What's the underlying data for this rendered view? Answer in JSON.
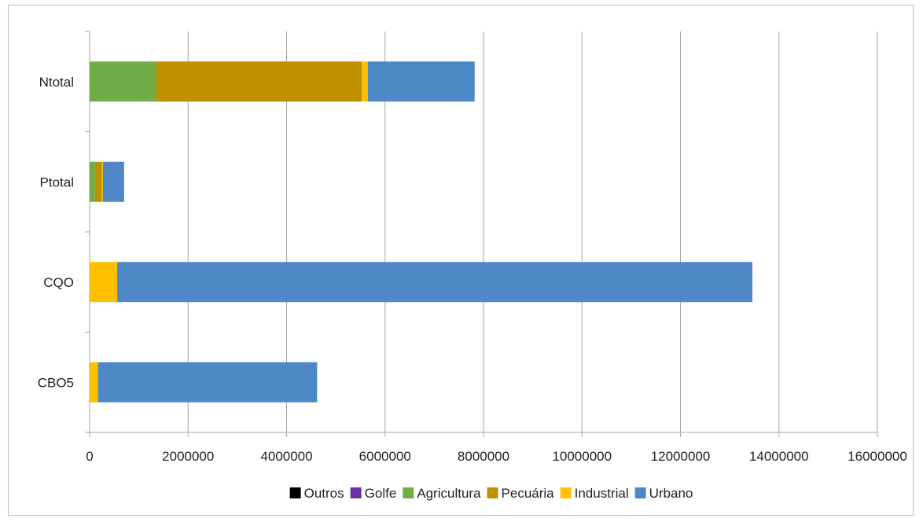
{
  "chart_data": {
    "type": "bar",
    "orientation": "horizontal",
    "stacked": true,
    "categories": [
      "CBO5",
      "CQO",
      "Ptotal",
      "Ntotal"
    ],
    "series": [
      {
        "name": "Outros",
        "color": "#000000",
        "values": [
          0,
          0,
          0,
          0
        ]
      },
      {
        "name": "Golfe",
        "color": "#7030a0",
        "values": [
          0,
          0,
          0,
          0
        ]
      },
      {
        "name": "Agricultura",
        "color": "#70ad47",
        "values": [
          0,
          0,
          110000,
          1350000
        ]
      },
      {
        "name": "Pecuária",
        "color": "#bf9000",
        "values": [
          0,
          0,
          140000,
          4180000
        ]
      },
      {
        "name": "Industrial",
        "color": "#ffc000",
        "values": [
          170000,
          560000,
          20000,
          120000
        ]
      },
      {
        "name": "Urbano",
        "color": "#4f88c6",
        "values": [
          4450000,
          12900000,
          430000,
          2170000
        ]
      }
    ],
    "xlim": [
      0,
      16000000
    ],
    "xticks": [
      "0",
      "2000000",
      "4000000",
      "6000000",
      "8000000",
      "10000000",
      "12000000",
      "14000000",
      "16000000"
    ],
    "xtick_values": [
      0,
      2000000,
      4000000,
      6000000,
      8000000,
      10000000,
      12000000,
      14000000,
      16000000
    ],
    "grid": "vertical",
    "legend": "bottom",
    "title": "",
    "xlabel": "",
    "ylabel": ""
  }
}
